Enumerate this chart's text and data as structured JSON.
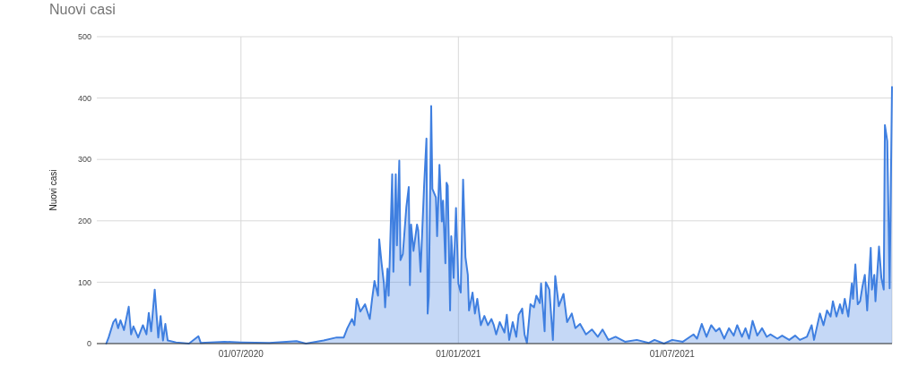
{
  "chart_data": {
    "type": "area",
    "title": "Nuovi casi",
    "ylabel": "Nuovi casi",
    "xlim": [
      "2020-03-01",
      "2022-01-03"
    ],
    "ylim": [
      0,
      500
    ],
    "xticks": [
      {
        "value": "2020-07-01",
        "label": "01/07/2020"
      },
      {
        "value": "2021-01-01",
        "label": "01/01/2021"
      },
      {
        "value": "2021-07-01",
        "label": "01/07/2021"
      }
    ],
    "yticks": [
      0,
      100,
      200,
      300,
      400,
      500
    ],
    "grid": true,
    "x": [
      "2020-03-09",
      "2020-03-11",
      "2020-03-15",
      "2020-03-17",
      "2020-03-19",
      "2020-03-21",
      "2020-03-24",
      "2020-03-28",
      "2020-03-30",
      "2020-04-01",
      "2020-04-05",
      "2020-04-09",
      "2020-04-12",
      "2020-04-14",
      "2020-04-16",
      "2020-04-19",
      "2020-04-22",
      "2020-04-24",
      "2020-04-26",
      "2020-04-28",
      "2020-04-30",
      "2020-05-07",
      "2020-05-18",
      "2020-05-26",
      "2020-05-28",
      "2020-06-17",
      "2020-07-01",
      "2020-07-25",
      "2020-08-17",
      "2020-08-25",
      "2020-09-09",
      "2020-09-20",
      "2020-09-26",
      "2020-09-29",
      "2020-10-03",
      "2020-10-05",
      "2020-10-07",
      "2020-10-10",
      "2020-10-14",
      "2020-10-18",
      "2020-10-20",
      "2020-10-22",
      "2020-10-25",
      "2020-10-26",
      "2020-10-28",
      "2020-10-30",
      "2020-10-31",
      "2020-11-02",
      "2020-11-03",
      "2020-11-04",
      "2020-11-06",
      "2020-11-07",
      "2020-11-09",
      "2020-11-10",
      "2020-11-12",
      "2020-11-13",
      "2020-11-15",
      "2020-11-18",
      "2020-11-20",
      "2020-11-21",
      "2020-11-22",
      "2020-11-24",
      "2020-11-27",
      "2020-11-28",
      "2020-11-30",
      "2020-12-03",
      "2020-12-05",
      "2020-12-06",
      "2020-12-07",
      "2020-12-09",
      "2020-12-10",
      "2020-12-13",
      "2020-12-14",
      "2020-12-16",
      "2020-12-18",
      "2020-12-19",
      "2020-12-21",
      "2020-12-22",
      "2020-12-23",
      "2020-12-25",
      "2020-12-26",
      "2020-12-28",
      "2020-12-30",
      "2021-01-01",
      "2021-01-03",
      "2021-01-05",
      "2021-01-07",
      "2021-01-09",
      "2021-01-10",
      "2021-01-13",
      "2021-01-15",
      "2021-01-17",
      "2021-01-20",
      "2021-01-23",
      "2021-01-26",
      "2021-01-29",
      "2021-01-31",
      "2021-02-02",
      "2021-02-05",
      "2021-02-09",
      "2021-02-11",
      "2021-02-13",
      "2021-02-16",
      "2021-02-19",
      "2021-02-21",
      "2021-02-24",
      "2021-02-26",
      "2021-02-28",
      "2021-03-03",
      "2021-03-06",
      "2021-03-08",
      "2021-03-11",
      "2021-03-12",
      "2021-03-15",
      "2021-03-16",
      "2021-03-19",
      "2021-03-22",
      "2021-03-24",
      "2021-03-27",
      "2021-03-31",
      "2021-04-03",
      "2021-04-07",
      "2021-04-10",
      "2021-04-14",
      "2021-04-19",
      "2021-04-24",
      "2021-04-29",
      "2021-05-03",
      "2021-05-08",
      "2021-05-14",
      "2021-05-22",
      "2021-06-01",
      "2021-06-11",
      "2021-06-16",
      "2021-06-24",
      "2021-07-01",
      "2021-07-10",
      "2021-07-19",
      "2021-07-22",
      "2021-07-26",
      "2021-07-30",
      "2021-08-03",
      "2021-08-07",
      "2021-08-10",
      "2021-08-14",
      "2021-08-18",
      "2021-08-22",
      "2021-08-25",
      "2021-08-29",
      "2021-09-01",
      "2021-09-04",
      "2021-09-07",
      "2021-09-11",
      "2021-09-15",
      "2021-09-19",
      "2021-09-22",
      "2021-09-28",
      "2021-10-02",
      "2021-10-08",
      "2021-10-13",
      "2021-10-17",
      "2021-10-23",
      "2021-10-27",
      "2021-10-29",
      "2021-11-03",
      "2021-11-06",
      "2021-11-09",
      "2021-11-12",
      "2021-11-14",
      "2021-11-17",
      "2021-11-20",
      "2021-11-22",
      "2021-11-24",
      "2021-11-27",
      "2021-11-30",
      "2021-12-01",
      "2021-12-03",
      "2021-12-05",
      "2021-12-07",
      "2021-12-09",
      "2021-12-11",
      "2021-12-13",
      "2021-12-16",
      "2021-12-17",
      "2021-12-19",
      "2021-12-20",
      "2021-12-23",
      "2021-12-25",
      "2021-12-27",
      "2021-12-28",
      "2021-12-30",
      "2022-01-01",
      "2022-01-03"
    ],
    "series": [
      {
        "color": "#3f7fe0",
        "values": [
          0,
          10,
          35,
          40,
          25,
          38,
          22,
          60,
          15,
          28,
          10,
          30,
          15,
          50,
          20,
          88,
          10,
          45,
          5,
          32,
          5,
          2,
          0,
          12,
          1,
          3,
          2,
          1,
          4,
          0,
          5,
          10,
          10,
          25,
          40,
          30,
          73,
          52,
          64,
          40,
          73,
          102,
          78,
          170,
          131,
          98,
          59,
          122,
          78,
          141,
          276,
          117,
          276,
          160,
          298,
          136,
          146,
          223,
          255,
          95,
          194,
          151,
          194,
          185,
          117,
          257,
          334,
          49,
          78,
          387,
          252,
          238,
          175,
          291,
          199,
          233,
          131,
          262,
          257,
          54,
          175,
          107,
          221,
          98,
          83,
          267,
          141,
          112,
          54,
          83,
          49,
          73,
          30,
          45,
          30,
          40,
          30,
          15,
          35,
          18,
          47,
          6,
          35,
          11,
          47,
          57,
          15,
          1,
          64,
          59,
          78,
          66,
          98,
          20,
          100,
          88,
          6,
          110,
          61,
          81,
          35,
          49,
          25,
          32,
          15,
          23,
          11,
          23,
          6,
          11,
          3,
          6,
          1,
          6,
          0,
          6,
          3,
          15,
          8,
          32,
          11,
          30,
          20,
          25,
          8,
          25,
          13,
          30,
          11,
          25,
          8,
          37,
          13,
          25,
          11,
          15,
          8,
          13,
          6,
          13,
          6,
          11,
          30,
          6,
          49,
          30,
          54,
          44,
          69,
          44,
          64,
          49,
          73,
          44,
          98,
          73,
          129,
          64,
          69,
          93,
          112,
          54,
          156,
          88,
          112,
          69,
          158,
          107,
          88,
          356,
          330,
          90,
          418
        ]
      }
    ]
  }
}
